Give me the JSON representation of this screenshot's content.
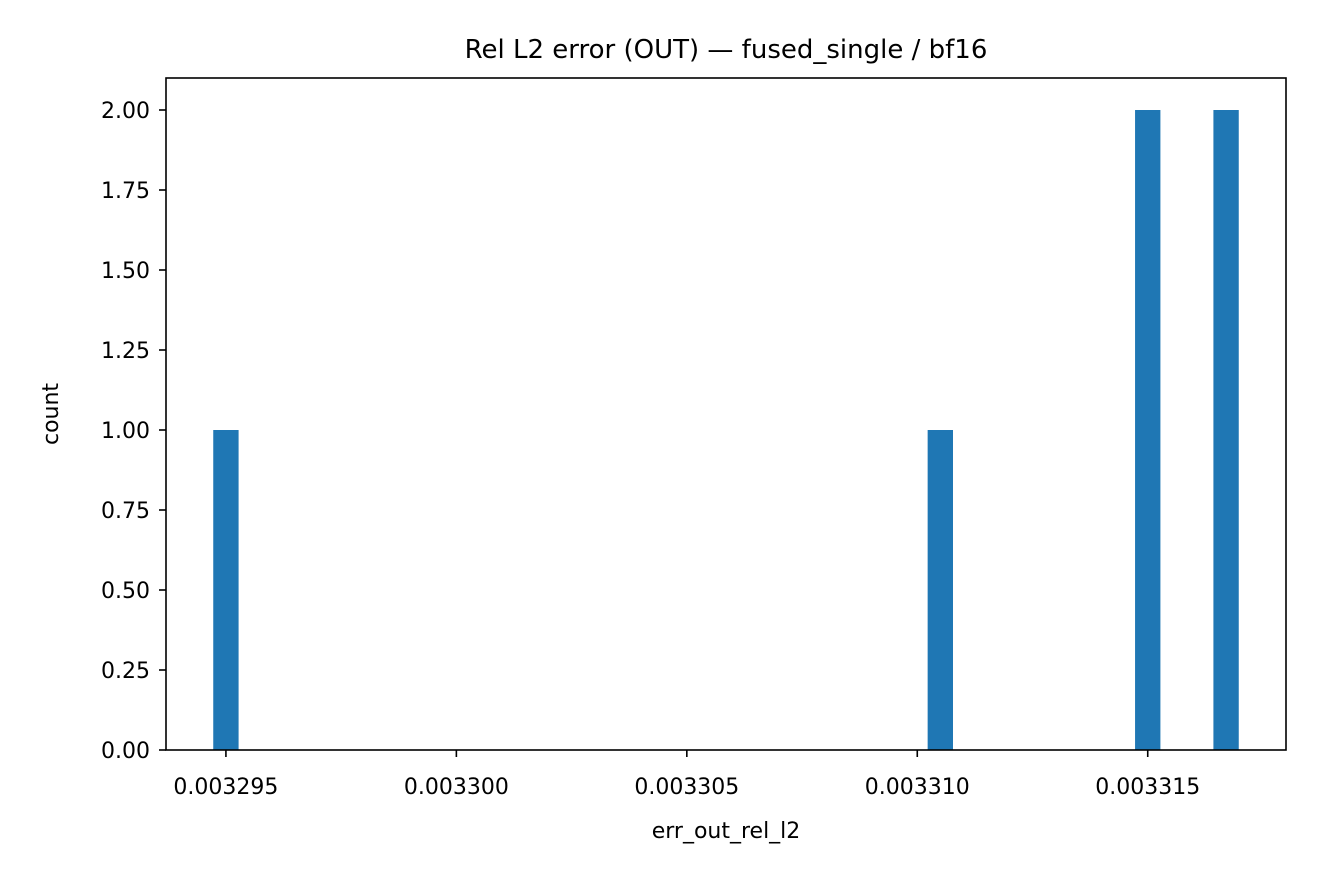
{
  "chart_data": {
    "type": "bar",
    "title": "Rel L2 error (OUT) — fused_single / bf16",
    "xlabel": "err_out_rel_l2",
    "ylabel": "count",
    "xlim": [
      0.0032937,
      0.003318
    ],
    "ylim": [
      0,
      2.1
    ],
    "x_ticks": [
      {
        "value": 0.003295,
        "label": "0.003295"
      },
      {
        "value": 0.0033,
        "label": "0.003300"
      },
      {
        "value": 0.003305,
        "label": "0.003305"
      },
      {
        "value": 0.00331,
        "label": "0.003310"
      },
      {
        "value": 0.003315,
        "label": "0.003315"
      }
    ],
    "y_ticks": [
      {
        "value": 0,
        "label": "0.00"
      },
      {
        "value": 0.25,
        "label": "0.25"
      },
      {
        "value": 0.5,
        "label": "0.50"
      },
      {
        "value": 0.75,
        "label": "0.75"
      },
      {
        "value": 1.0,
        "label": "1.00"
      },
      {
        "value": 1.25,
        "label": "1.25"
      },
      {
        "value": 1.5,
        "label": "1.50"
      },
      {
        "value": 1.75,
        "label": "1.75"
      },
      {
        "value": 2.0,
        "label": "2.00"
      }
    ],
    "bin_width": 5.5e-07,
    "bars": [
      {
        "x": 0.003295,
        "count": 1
      },
      {
        "x": 0.0033105,
        "count": 1
      },
      {
        "x": 0.003315,
        "count": 2
      },
      {
        "x": 0.0033167,
        "count": 2
      }
    ],
    "bar_color": "#1f77b4",
    "grid": false,
    "legend": "none"
  }
}
